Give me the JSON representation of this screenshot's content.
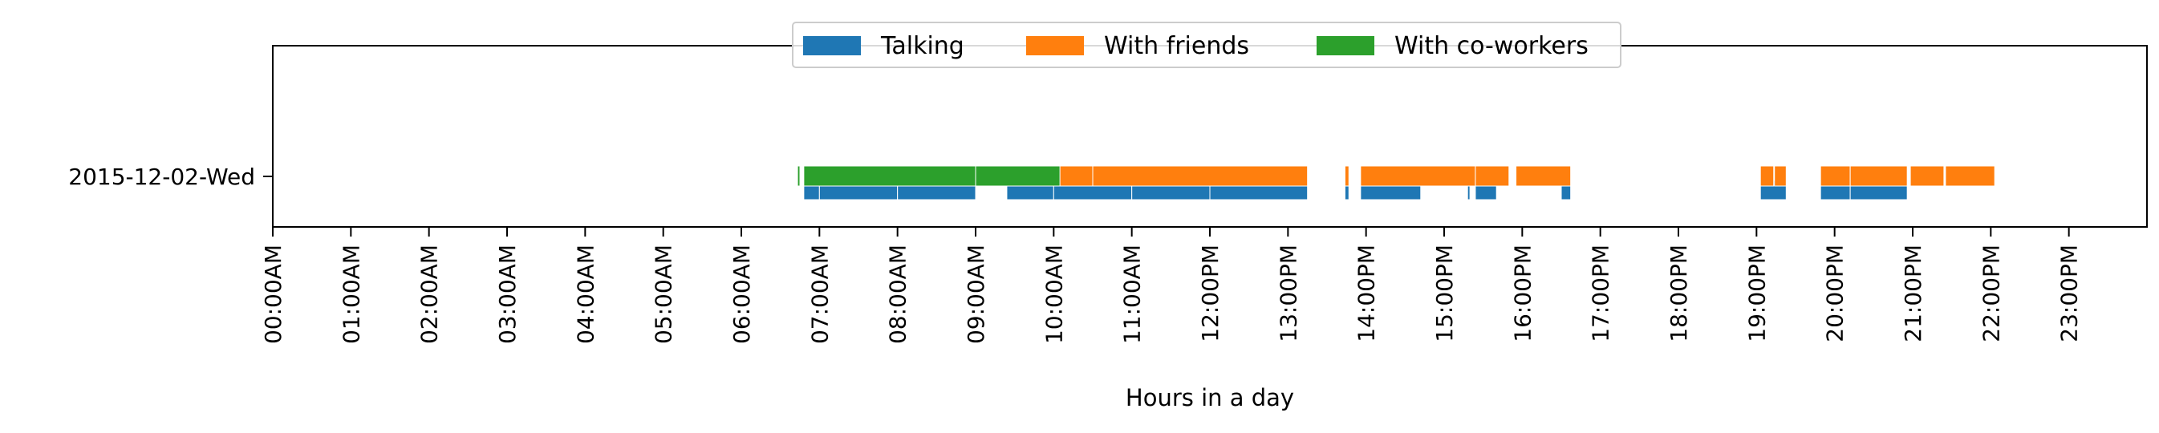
{
  "chart_data": {
    "type": "timeline",
    "xlabel": "Hours in a day",
    "ylabel": "",
    "x_unit": "hours",
    "xlim": [
      0,
      24
    ],
    "x_tick_labels": [
      "00:00AM",
      "01:00AM",
      "02:00AM",
      "03:00AM",
      "04:00AM",
      "05:00AM",
      "06:00AM",
      "07:00AM",
      "08:00AM",
      "09:00AM",
      "10:00AM",
      "11:00AM",
      "12:00PM",
      "13:00PM",
      "14:00PM",
      "15:00PM",
      "16:00PM",
      "17:00PM",
      "18:00PM",
      "19:00PM",
      "20:00PM",
      "21:00PM",
      "22:00PM",
      "23:00PM"
    ],
    "categories": [
      "2015-12-02-Wed"
    ],
    "legend_position": "top-center",
    "grid": false,
    "series": [
      {
        "name": "Talking",
        "color": "#1f77b4",
        "lane": "bottom",
        "intervals": [
          [
            6.8,
            7.0
          ],
          [
            7.0,
            8.0
          ],
          [
            8.0,
            9.0
          ],
          [
            9.4,
            10.0
          ],
          [
            10.0,
            11.0
          ],
          [
            11.0,
            12.0
          ],
          [
            12.0,
            13.25
          ],
          [
            13.73,
            13.78
          ],
          [
            13.93,
            14.7
          ],
          [
            15.3,
            15.33
          ],
          [
            15.4,
            15.67
          ],
          [
            16.5,
            16.62
          ],
          [
            19.05,
            19.38
          ],
          [
            19.82,
            20.2
          ],
          [
            20.2,
            20.93
          ]
        ]
      },
      {
        "name": "With friends",
        "color": "#ff7f0e",
        "lane": "top",
        "intervals": [
          [
            10.07,
            10.5
          ],
          [
            10.5,
            13.25
          ],
          [
            13.73,
            13.78
          ],
          [
            13.93,
            15.4
          ],
          [
            15.4,
            15.83
          ],
          [
            15.92,
            16.62
          ],
          [
            19.05,
            19.22
          ],
          [
            19.23,
            19.38
          ],
          [
            19.82,
            20.2
          ],
          [
            20.2,
            20.93
          ],
          [
            20.97,
            21.4
          ],
          [
            21.42,
            22.05
          ]
        ]
      },
      {
        "name": "With co-workers",
        "color": "#2ca02c",
        "lane": "top",
        "intervals": [
          [
            6.72,
            6.75
          ],
          [
            6.8,
            9.0
          ],
          [
            9.0,
            10.08
          ]
        ]
      }
    ]
  }
}
